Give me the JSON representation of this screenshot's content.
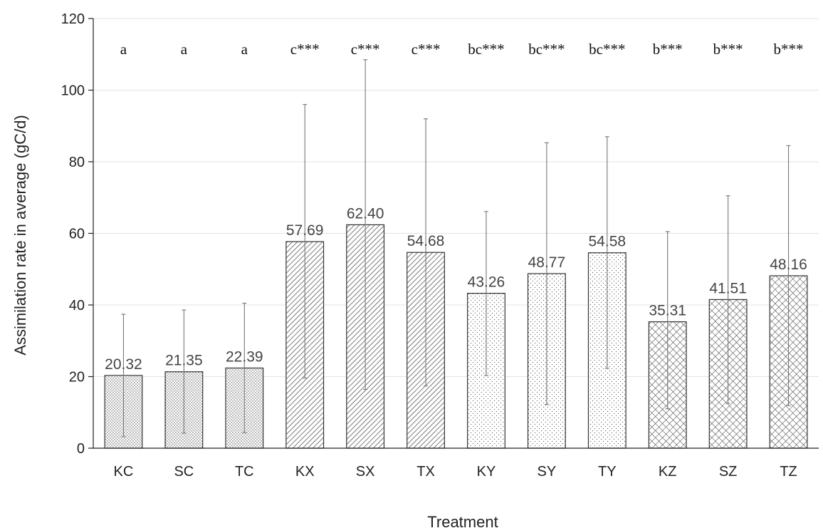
{
  "chart_data": {
    "type": "bar",
    "xlabel": "Treatment",
    "ylabel": "Assimilation rate in average (gC/d)",
    "ylim": [
      0,
      120
    ],
    "yticks": [
      0,
      20,
      40,
      60,
      80,
      100,
      120
    ],
    "grid": true,
    "categories": [
      "KC",
      "SC",
      "TC",
      "KX",
      "SX",
      "TX",
      "KY",
      "SY",
      "TY",
      "KZ",
      "SZ",
      "TZ"
    ],
    "values": [
      20.32,
      21.35,
      22.39,
      57.69,
      62.4,
      54.68,
      43.26,
      48.77,
      54.58,
      35.31,
      41.51,
      48.16
    ],
    "value_labels": [
      "20.32",
      "21.35",
      "22.39",
      "57.69",
      "62.40",
      "54.68",
      "43.26",
      "48.77",
      "54.58",
      "35.31",
      "41.51",
      "48.16"
    ],
    "error_low": [
      3.2,
      4.2,
      4.3,
      19.6,
      16.4,
      17.4,
      20.3,
      12.2,
      22.3,
      11.0,
      12.5,
      11.9
    ],
    "error_high": [
      37.4,
      38.6,
      40.5,
      96.0,
      108.5,
      92.0,
      66.1,
      85.3,
      87.0,
      60.5,
      70.5,
      84.5
    ],
    "significance": [
      "a",
      "a",
      "a",
      "c***",
      "c***",
      "c***",
      "bc***",
      "bc***",
      "bc***",
      "b***",
      "b***",
      "b***"
    ],
    "pattern_groups": [
      "dense-dots",
      "dense-dots",
      "dense-dots",
      "diagonal-hatch",
      "diagonal-hatch",
      "diagonal-hatch",
      "sparse-dots",
      "sparse-dots",
      "sparse-dots",
      "crosshatch",
      "crosshatch",
      "crosshatch"
    ],
    "colors": {
      "bar_stroke": "#333333",
      "pattern": "#555555",
      "grid": "#e3e3e3",
      "errorbar": "#777777"
    }
  }
}
